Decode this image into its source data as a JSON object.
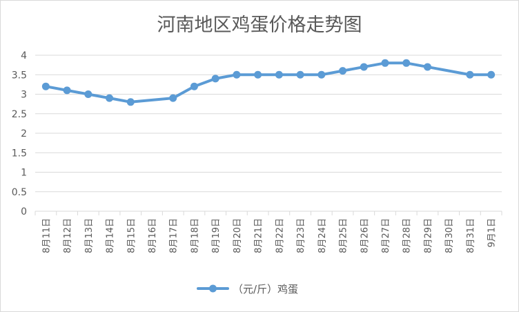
{
  "chart_data": {
    "type": "line",
    "title": "河南地区鸡蛋价格走势图",
    "xlabel": "",
    "ylabel": "",
    "ylim": [
      0,
      4
    ],
    "yticks": [
      "0",
      "0.5",
      "1",
      "1.5",
      "2",
      "2.5",
      "3",
      "3.5",
      "4"
    ],
    "grid": true,
    "legend_position": "bottom",
    "color": "#5B9BD5",
    "categories": [
      "8月11日",
      "8月12日",
      "8月13日",
      "8月14日",
      "8月15日",
      "8月16日",
      "8月17日",
      "8月18日",
      "8月19日",
      "8月20日",
      "8月21日",
      "8月22日",
      "8月23日",
      "8月24日",
      "8月25日",
      "8月26日",
      "8月27日",
      "8月28日",
      "8月29日",
      "8月30日",
      "8月31日",
      "9月1日"
    ],
    "series": [
      {
        "name": "（元/斤）鸡蛋",
        "values": [
          3.2,
          3.1,
          3.0,
          2.9,
          2.8,
          null,
          2.9,
          3.2,
          3.4,
          3.5,
          3.5,
          3.5,
          3.5,
          3.5,
          3.6,
          3.7,
          3.8,
          3.8,
          3.7,
          null,
          3.5,
          3.5
        ]
      }
    ]
  }
}
